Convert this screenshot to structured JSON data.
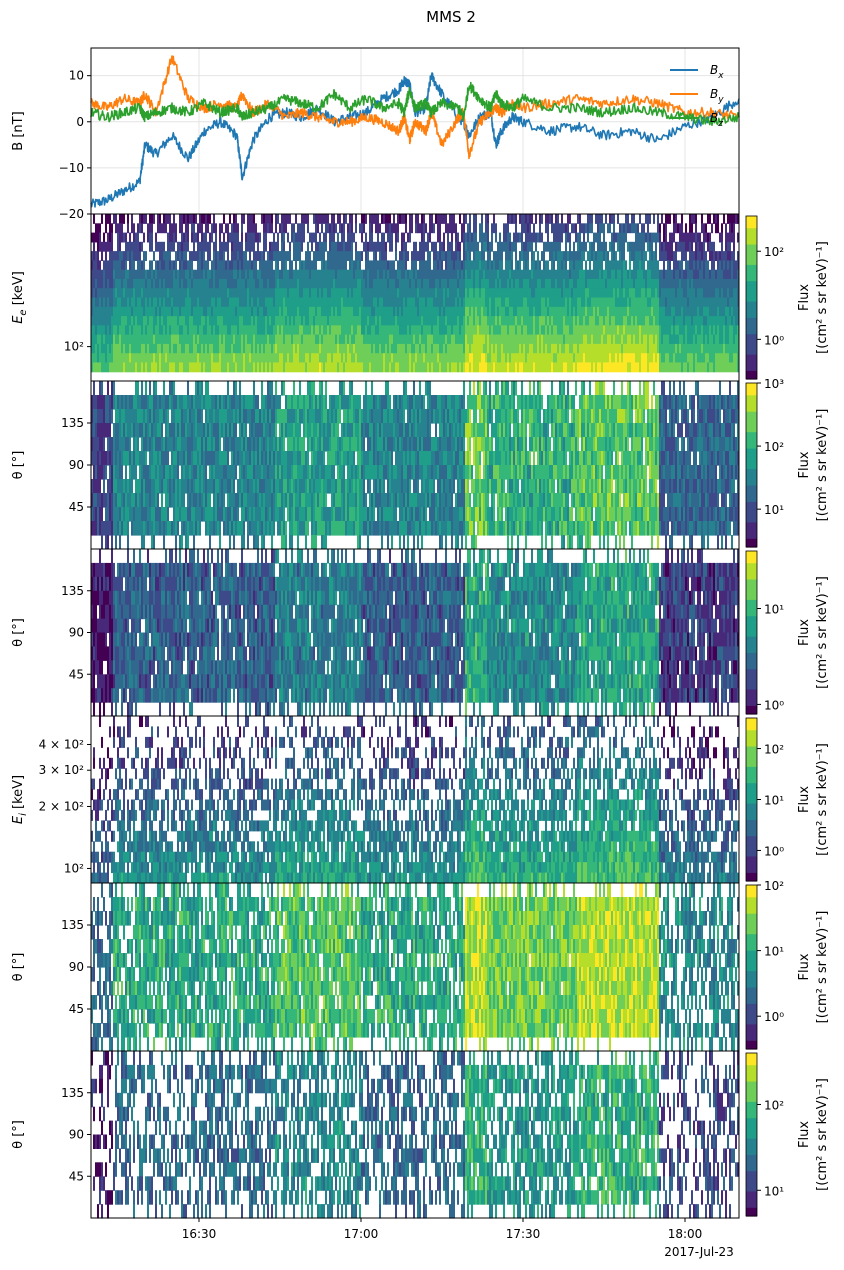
{
  "title": "MMS 2",
  "time_axis": {
    "tick_labels": [
      "16:30",
      "17:00",
      "17:30",
      "18:00"
    ],
    "tick_minutes": [
      30,
      60,
      90,
      120
    ],
    "start_label": "16:10",
    "end_label": "18:10",
    "range_minutes": [
      10,
      130
    ],
    "date_label": "2017-Jul-23"
  },
  "colors": {
    "Bx": "#1f77b4",
    "By": "#ff7f0e",
    "Bz": "#2ca02c",
    "viridis": [
      "#440154",
      "#482878",
      "#3e4989",
      "#31688e",
      "#26828e",
      "#1f9e89",
      "#35b779",
      "#6ece58",
      "#b5de2b",
      "#fde725"
    ]
  },
  "colorbar_label": [
    "Flux",
    "[(cm² s sr keV)⁻¹]"
  ],
  "chart_data": [
    {
      "type": "line",
      "panel": "B",
      "ylabel": "B [nT]",
      "ylim": [
        -20,
        16
      ],
      "yticks": [
        "10",
        "0",
        "−10",
        "−20"
      ],
      "ytick_values": [
        10,
        0,
        -10,
        -20
      ],
      "grid": true,
      "legend": "top-right",
      "x": [
        10,
        13,
        16,
        19,
        20,
        22,
        25,
        28,
        31,
        34,
        37,
        38,
        40,
        43,
        46,
        49,
        52,
        55,
        58,
        61,
        64,
        67,
        68,
        69,
        70,
        72,
        73,
        75,
        78,
        79,
        80,
        82,
        84,
        85,
        86,
        88,
        90,
        95,
        100,
        105,
        110,
        115,
        120,
        125,
        130
      ],
      "series": [
        {
          "name": "Bx",
          "legend_label": "B",
          "legend_sub": "x",
          "values": [
            -18,
            -17,
            -15,
            -13,
            -5,
            -7,
            -3,
            -8,
            -2,
            0,
            -3,
            -12,
            -4,
            1,
            2,
            1,
            3,
            0,
            1,
            2,
            5,
            7,
            9,
            8,
            2,
            3,
            10,
            6,
            1,
            0,
            -3,
            1,
            2,
            -5,
            -2,
            1,
            0,
            -2,
            -1,
            -3,
            -2,
            -4,
            -1,
            1,
            5
          ]
        },
        {
          "name": "By",
          "legend_label": "B",
          "legend_sub": "y",
          "values": [
            4,
            3,
            5,
            4,
            6,
            2,
            14,
            5,
            3,
            4,
            3,
            6,
            2,
            4,
            1,
            2,
            1,
            0,
            0,
            1,
            0,
            -2,
            1,
            -4,
            0,
            -2,
            2,
            -5,
            1,
            2,
            -7,
            0,
            2,
            3,
            2,
            4,
            3,
            4,
            5,
            4,
            5,
            4,
            2,
            2,
            1
          ]
        },
        {
          "name": "Bz",
          "legend_label": "B",
          "legend_sub": "z",
          "values": [
            2,
            1,
            2,
            3,
            1,
            2,
            3,
            2,
            4,
            2,
            3,
            1,
            2,
            3,
            5,
            4,
            3,
            6,
            3,
            5,
            3,
            4,
            2,
            7,
            3,
            4,
            2,
            4,
            3,
            1,
            8,
            5,
            3,
            6,
            4,
            3,
            5,
            3,
            3,
            2,
            3,
            2,
            1,
            0,
            1
          ]
        }
      ]
    },
    {
      "type": "heatmap",
      "panel": "electron-energy",
      "ylabel": "E_e [keV]",
      "ylabel_main": "E",
      "ylabel_sub": "e",
      "ylabel_unit": "[keV]",
      "yticks": [
        "10²"
      ],
      "ytick_values": [
        100
      ],
      "ylim": [
        25,
        21000
      ],
      "yscale": "log",
      "colorbar_ticks": [
        "10²",
        "10⁰"
      ],
      "colorbar_tick_values": [
        2,
        0
      ],
      "colorbar_range_log": [
        -0.9,
        2.8
      ]
    },
    {
      "type": "heatmap",
      "panel": "electron-pitch-1",
      "ylabel": "θ [°]",
      "yticks": [
        "135",
        "90",
        "45"
      ],
      "ytick_values": [
        135,
        90,
        45
      ],
      "ylim": [
        0,
        180
      ],
      "colorbar_ticks": [
        "10³",
        "10²",
        "10¹"
      ],
      "colorbar_tick_values": [
        3,
        2,
        1
      ],
      "colorbar_range_log": [
        0.4,
        3.0
      ]
    },
    {
      "type": "heatmap",
      "panel": "electron-pitch-2",
      "ylabel": "θ [°]",
      "yticks": [
        "135",
        "90",
        "45"
      ],
      "ytick_values": [
        135,
        90,
        45
      ],
      "ylim": [
        0,
        180
      ],
      "colorbar_ticks": [
        "10¹",
        "10⁰"
      ],
      "colorbar_tick_values": [
        1,
        0
      ],
      "colorbar_range_log": [
        -0.1,
        1.6
      ]
    },
    {
      "type": "heatmap",
      "panel": "ion-energy",
      "ylabel": "E_i [keV]",
      "ylabel_main": "E",
      "ylabel_sub": "i",
      "ylabel_unit": "[keV]",
      "yticks": [
        "4 × 10²",
        "3 × 10²",
        "2 × 10²",
        "10²"
      ],
      "ytick_values": [
        400,
        300,
        200,
        100
      ],
      "ylim": [
        85,
        550
      ],
      "yscale": "log",
      "colorbar_ticks": [
        "10²",
        "10¹",
        "10⁰"
      ],
      "colorbar_tick_values": [
        2,
        1,
        0
      ],
      "colorbar_range_log": [
        -0.6,
        2.6
      ]
    },
    {
      "type": "heatmap",
      "panel": "ion-pitch-1",
      "ylabel": "θ [°]",
      "yticks": [
        "135",
        "90",
        "45"
      ],
      "ytick_values": [
        135,
        90,
        45
      ],
      "ylim": [
        0,
        180
      ],
      "colorbar_ticks": [
        "10²",
        "10¹",
        "10⁰"
      ],
      "colorbar_tick_values": [
        2,
        1,
        0
      ],
      "colorbar_range_log": [
        -0.5,
        2.0
      ]
    },
    {
      "type": "heatmap",
      "panel": "ion-pitch-2",
      "ylabel": "θ [°]",
      "yticks": [
        "135",
        "90",
        "45"
      ],
      "ytick_values": [
        135,
        90,
        45
      ],
      "ylim": [
        0,
        180
      ],
      "colorbar_ticks": [
        "10²",
        "10¹"
      ],
      "colorbar_tick_values": [
        2,
        1
      ],
      "colorbar_range_log": [
        0.7,
        2.6
      ]
    }
  ]
}
